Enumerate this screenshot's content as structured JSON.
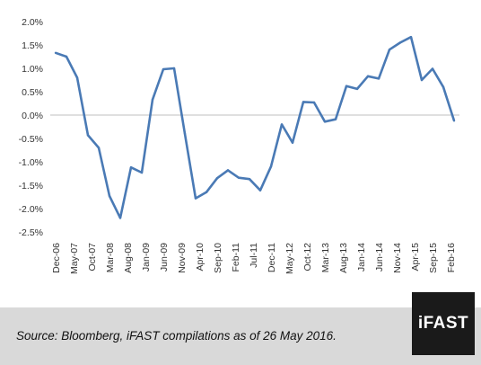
{
  "chart_data": {
    "type": "line",
    "title": "",
    "xlabel": "",
    "ylabel": "",
    "ylim": [
      -2.5,
      2.0
    ],
    "y_ticks": [
      "2.0%",
      "1.5%",
      "1.0%",
      "0.5%",
      "0.0%",
      "-0.5%",
      "-1.0%",
      "-1.5%",
      "-2.0%",
      "-2.5%"
    ],
    "y_tick_values": [
      2.0,
      1.5,
      1.0,
      0.5,
      0.0,
      -0.5,
      -1.0,
      -1.5,
      -2.0,
      -2.5
    ],
    "x_tick_labels": [
      "Dec-06",
      "May-07",
      "Oct-07",
      "Mar-08",
      "Aug-08",
      "Jan-09",
      "Jun-09",
      "Nov-09",
      "Apr-10",
      "Sep-10",
      "Feb-11",
      "Jul-11",
      "Dec-11",
      "May-12",
      "Oct-12",
      "Mar-13",
      "Aug-13",
      "Jan-14",
      "Jun-14",
      "Nov-14",
      "Apr-15",
      "Sep-15",
      "Feb-16"
    ],
    "grid": false,
    "line_color": "#4a7ab5",
    "series": [
      {
        "values": [
          1.33,
          1.25,
          0.8,
          -0.43,
          -0.7,
          -1.73,
          -2.2,
          -1.12,
          -1.23,
          0.33,
          0.98,
          1.0,
          -0.4,
          -1.78,
          -1.65,
          -1.35,
          -1.18,
          -1.34,
          -1.37,
          -1.61,
          -1.1,
          -0.2,
          -0.59,
          0.28,
          0.27,
          -0.14,
          -0.09,
          0.62,
          0.56,
          0.83,
          0.78,
          1.4,
          1.55,
          1.67,
          0.75,
          0.99,
          0.6,
          -0.12
        ]
      }
    ]
  },
  "footer": {
    "source": "Source: Bloomberg, iFAST compilations as of 26 May 2016.",
    "logo_text": "iFAST",
    "background": "#d9d9d9",
    "logo_background": "#1a1a1a"
  }
}
